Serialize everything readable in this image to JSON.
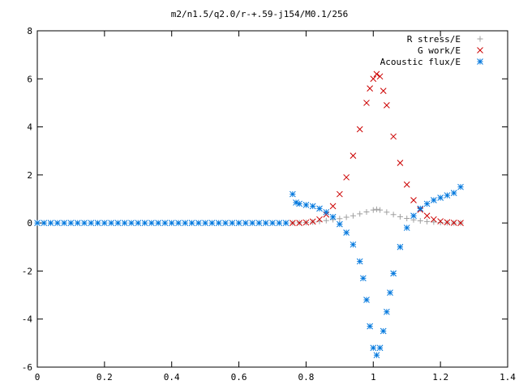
{
  "chart_data": {
    "type": "scatter",
    "title": "m2/n1.5/q2.0/r-+.59-j154/M0.1/256",
    "xlabel": "",
    "ylabel": "",
    "xlim": [
      0,
      1.4
    ],
    "ylim": [
      -6,
      8
    ],
    "xticks": [
      "0",
      "0.2",
      "0.4",
      "0.6",
      "0.8",
      "1",
      "1.2",
      "1.4"
    ],
    "yticks": [
      "-6",
      "-4",
      "-2",
      "0",
      "2",
      "4",
      "6",
      "8"
    ],
    "grid": false,
    "legend_position": "top-right",
    "series": [
      {
        "name": "R stress/E",
        "marker": "plus",
        "color": "#a0a0a0",
        "x": [
          0.76,
          0.78,
          0.8,
          0.82,
          0.84,
          0.86,
          0.88,
          0.9,
          0.92,
          0.94,
          0.96,
          0.98,
          1.0,
          1.01,
          1.02,
          1.04,
          1.06,
          1.08,
          1.1,
          1.12,
          1.14,
          1.16,
          1.18,
          1.2,
          1.22,
          1.24,
          1.26
        ],
        "y": [
          0.0,
          0.01,
          0.02,
          0.04,
          0.07,
          0.1,
          0.14,
          0.18,
          0.24,
          0.3,
          0.38,
          0.46,
          0.54,
          0.57,
          0.54,
          0.45,
          0.35,
          0.26,
          0.19,
          0.13,
          0.09,
          0.06,
          0.04,
          0.02,
          0.01,
          0.0,
          0.0
        ]
      },
      {
        "name": "G work/E",
        "marker": "cross",
        "color": "#cc0000",
        "x": [
          0.76,
          0.78,
          0.8,
          0.82,
          0.84,
          0.86,
          0.88,
          0.9,
          0.92,
          0.94,
          0.96,
          0.98,
          0.99,
          1.0,
          1.01,
          1.02,
          1.03,
          1.04,
          1.06,
          1.08,
          1.1,
          1.12,
          1.14,
          1.16,
          1.18,
          1.2,
          1.22,
          1.24,
          1.26
        ],
        "y": [
          0.0,
          0.0,
          0.02,
          0.06,
          0.15,
          0.35,
          0.7,
          1.2,
          1.9,
          2.8,
          3.9,
          5.0,
          5.6,
          6.0,
          6.2,
          6.1,
          5.5,
          4.9,
          3.6,
          2.5,
          1.6,
          0.95,
          0.55,
          0.3,
          0.15,
          0.07,
          0.03,
          0.01,
          0.0
        ]
      },
      {
        "name": "Acoustic flux/E",
        "marker": "star",
        "color": "#0077dd",
        "x": [
          0.0,
          0.02,
          0.04,
          0.06,
          0.08,
          0.1,
          0.12,
          0.14,
          0.16,
          0.18,
          0.2,
          0.22,
          0.24,
          0.26,
          0.28,
          0.3,
          0.32,
          0.34,
          0.36,
          0.38,
          0.4,
          0.42,
          0.44,
          0.46,
          0.48,
          0.5,
          0.52,
          0.54,
          0.56,
          0.58,
          0.6,
          0.62,
          0.64,
          0.66,
          0.68,
          0.7,
          0.72,
          0.74,
          0.76,
          0.77,
          0.78,
          0.8,
          0.82,
          0.84,
          0.86,
          0.88,
          0.9,
          0.92,
          0.94,
          0.96,
          0.97,
          0.98,
          0.99,
          1.0,
          1.01,
          1.02,
          1.03,
          1.04,
          1.05,
          1.06,
          1.08,
          1.1,
          1.12,
          1.14,
          1.16,
          1.18,
          1.2,
          1.22,
          1.24,
          1.26
        ],
        "y": [
          0,
          0,
          0,
          0,
          0,
          0,
          0,
          0,
          0,
          0,
          0,
          0,
          0,
          0,
          0,
          0,
          0,
          0,
          0,
          0,
          0,
          0,
          0,
          0,
          0,
          0,
          0,
          0,
          0,
          0,
          0,
          0,
          0,
          0,
          0,
          0,
          0,
          0,
          1.2,
          0.85,
          0.8,
          0.75,
          0.7,
          0.6,
          0.45,
          0.25,
          -0.05,
          -0.4,
          -0.9,
          -1.6,
          -2.3,
          -3.2,
          -4.3,
          -5.2,
          -5.5,
          -5.2,
          -4.5,
          -3.7,
          -2.9,
          -2.1,
          -1.0,
          -0.2,
          0.3,
          0.6,
          0.8,
          0.95,
          1.05,
          1.15,
          1.25,
          1.5
        ]
      }
    ]
  }
}
